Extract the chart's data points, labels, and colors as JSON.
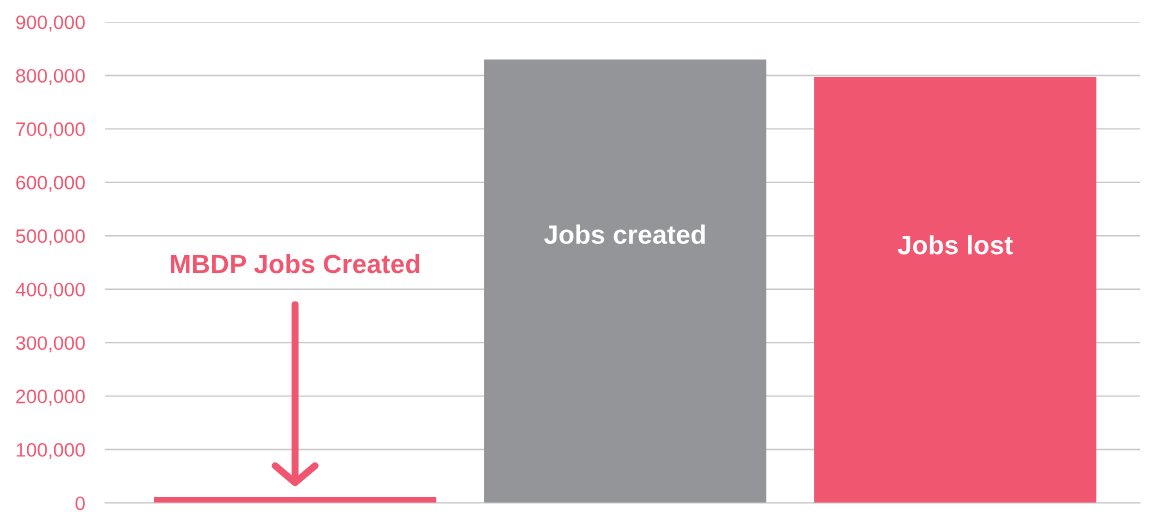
{
  "chart_data": {
    "type": "bar",
    "categories": [
      "MBDP Jobs Created",
      "Jobs created",
      "Jobs lost"
    ],
    "values": [
      11000,
      830000,
      797000
    ],
    "colors": [
      "#f0566f",
      "#939598",
      "#f0566f"
    ],
    "ylim": [
      0,
      900000
    ],
    "yticks": [
      {
        "value": 0,
        "label": "0"
      },
      {
        "value": 100000,
        "label": "100,000"
      },
      {
        "value": 200000,
        "label": "200,000"
      },
      {
        "value": 300000,
        "label": "300,000"
      },
      {
        "value": 400000,
        "label": "400,000"
      },
      {
        "value": 500000,
        "label": "500,000"
      },
      {
        "value": 600000,
        "label": "600,000"
      },
      {
        "value": 700000,
        "label": "700,000"
      },
      {
        "value": 800000,
        "label": "800,000"
      },
      {
        "value": 900000,
        "label": "900,000"
      }
    ],
    "grid": "y",
    "tick_labels": "y"
  }
}
